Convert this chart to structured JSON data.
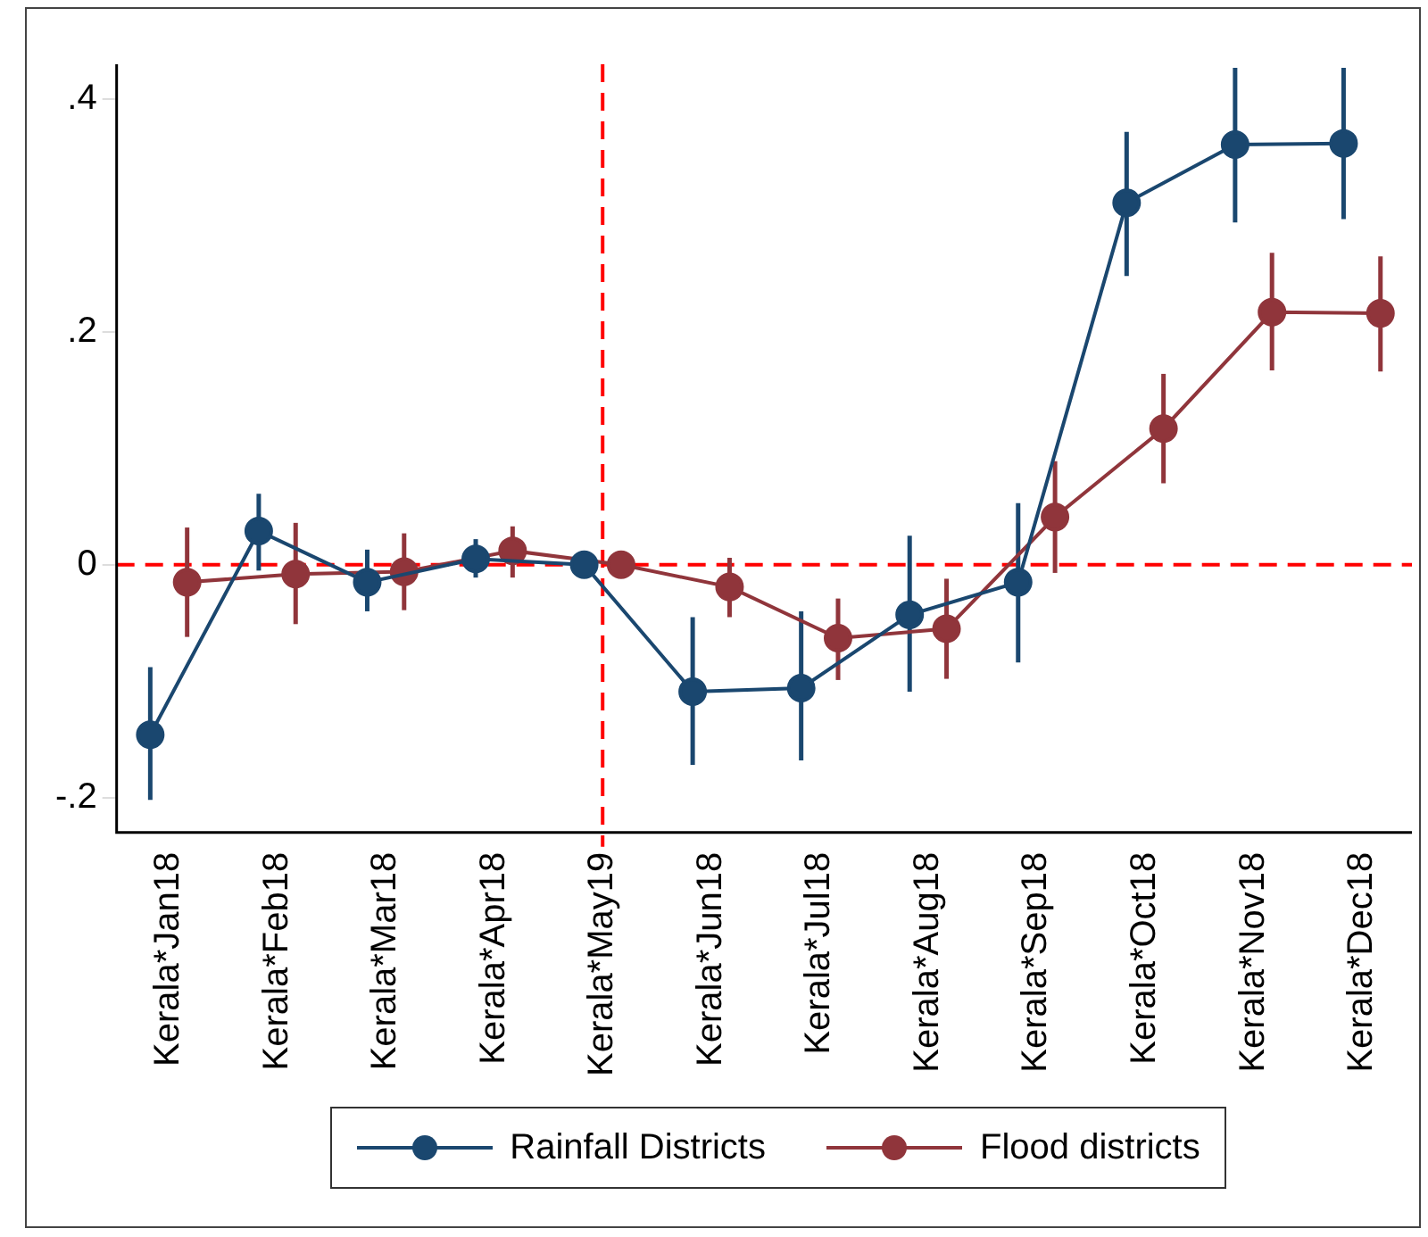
{
  "chart_data": {
    "type": "line",
    "categories": [
      "Kerala*Jan18",
      "Kerala*Feb18",
      "Kerala*Mar18",
      "Kerala*Apr18",
      "Kerala*May19",
      "Kerala*Jun18",
      "Kerala*Jul18",
      "Kerala*Aug18",
      "Kerala*Sep18",
      "Kerala*Oct18",
      "Kerala*Nov18",
      "Kerala*Dec18"
    ],
    "series": [
      {
        "name": "Rainfall Districts",
        "color": "#1a476f",
        "values": [
          -0.146,
          0.029,
          -0.015,
          0.005,
          0.0,
          -0.109,
          -0.106,
          -0.043,
          -0.015,
          0.311,
          0.361,
          0.362
        ],
        "errors": [
          [
            -0.202,
            -0.088
          ],
          [
            -0.005,
            0.061
          ],
          [
            -0.04,
            0.013
          ],
          [
            -0.011,
            0.022
          ],
          null,
          [
            -0.172,
            -0.045
          ],
          [
            -0.168,
            -0.04
          ],
          [
            -0.109,
            0.025
          ],
          [
            -0.084,
            0.053
          ],
          [
            0.248,
            0.372
          ],
          [
            0.294,
            0.427
          ],
          [
            0.297,
            0.427
          ]
        ]
      },
      {
        "name": "Flood districts",
        "color": "#90353b",
        "values": [
          -0.015,
          -0.008,
          -0.006,
          0.012,
          0.0,
          -0.019,
          -0.063,
          -0.055,
          0.041,
          0.117,
          0.217,
          0.216
        ],
        "errors": [
          [
            -0.062,
            0.032
          ],
          [
            -0.051,
            0.036
          ],
          [
            -0.039,
            0.027
          ],
          [
            -0.011,
            0.033
          ],
          null,
          [
            -0.045,
            0.006
          ],
          [
            -0.099,
            -0.029
          ],
          [
            -0.098,
            -0.012
          ],
          [
            -0.007,
            0.089
          ],
          [
            0.07,
            0.164
          ],
          [
            0.167,
            0.268
          ],
          [
            0.166,
            0.265
          ]
        ]
      }
    ],
    "ylim": [
      -0.23,
      0.43
    ],
    "yticks": [
      {
        "value": -0.2,
        "label": "-.2"
      },
      {
        "value": 0,
        "label": "0"
      },
      {
        "value": 0.2,
        "label": ".2"
      },
      {
        "value": 0.4,
        "label": ".4"
      }
    ],
    "ref_lines": [
      {
        "axis": "y",
        "value": 0,
        "color": "#ff0000",
        "line_style": "dashed"
      },
      {
        "axis": "x",
        "value": "Kerala*May19",
        "color": "#ff0000",
        "line_style": "dashed"
      }
    ],
    "marker": "circle",
    "legend": "bottom",
    "grid": false
  }
}
